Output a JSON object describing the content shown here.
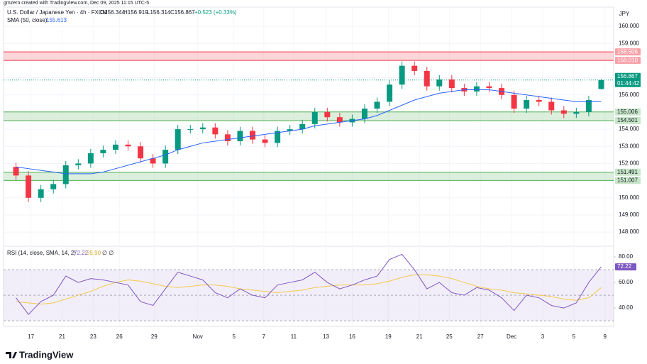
{
  "attribution": "gmzern created with TradingView.com, Dec 09, 2025 11:15 UTC-5",
  "logo": "TradingView",
  "chart_data": {
    "type": "candlestick",
    "title": "U.S. Dollar / Japanese Yen · 4h · FXCM",
    "ohlc": [
      "O156.344",
      "H156.919",
      "L156.314",
      "C156.867"
    ],
    "change": "+0.523 (+0.33%)",
    "currency": "JPY",
    "up_color": "#089981",
    "down_color": "#f23645",
    "x": [
      0,
      1,
      2,
      3,
      4,
      5,
      6,
      7,
      8,
      9,
      10,
      11,
      12,
      13,
      14,
      15,
      16,
      17,
      18,
      19,
      20,
      21,
      22,
      23,
      24,
      25,
      26,
      27,
      28,
      29,
      30,
      31,
      32,
      33,
      34,
      35,
      36,
      37,
      38,
      39,
      40,
      41,
      42,
      43,
      44,
      45,
      46,
      47
    ],
    "open": [
      151.8,
      151.3,
      150.0,
      150.5,
      150.8,
      151.9,
      152.0,
      152.6,
      152.8,
      153.1,
      153.0,
      152.3,
      152.0,
      152.8,
      154.0,
      154.0,
      154.1,
      153.7,
      153.3,
      153.9,
      153.4,
      153.2,
      153.9,
      154.0,
      154.3,
      155.0,
      154.7,
      154.4,
      154.6,
      155.2,
      155.6,
      156.6,
      157.7,
      157.4,
      156.5,
      156.9,
      156.4,
      156.2,
      156.5,
      156.4,
      156.0,
      155.2,
      155.7,
      155.6,
      155.1,
      154.9,
      155.0,
      156.344
    ],
    "high": [
      152.05,
      151.55,
      150.75,
      151.05,
      152.15,
      152.25,
      152.85,
      153.05,
      153.35,
      153.35,
      153.25,
      152.55,
      153.05,
      154.25,
      154.25,
      154.35,
      154.35,
      153.95,
      154.15,
      154.15,
      153.65,
      154.15,
      154.25,
      154.55,
      155.25,
      155.25,
      154.95,
      154.85,
      155.45,
      155.85,
      156.85,
      157.95,
      157.95,
      157.65,
      157.15,
      157.15,
      156.65,
      156.75,
      156.75,
      156.65,
      156.25,
      155.95,
      155.95,
      155.85,
      155.35,
      155.25,
      155.95,
      156.919
    ],
    "low": [
      151.05,
      149.75,
      149.75,
      150.25,
      150.55,
      151.65,
      151.75,
      152.35,
      152.55,
      152.75,
      152.05,
      151.75,
      151.75,
      152.55,
      153.75,
      153.75,
      153.45,
      153.05,
      153.05,
      153.15,
      152.95,
      152.95,
      153.65,
      153.75,
      154.05,
      154.45,
      154.15,
      154.15,
      154.35,
      154.95,
      155.35,
      156.35,
      157.15,
      156.25,
      156.25,
      156.15,
      155.95,
      155.95,
      156.15,
      155.75,
      154.95,
      154.95,
      155.35,
      154.85,
      154.65,
      154.65,
      154.75,
      156.314
    ],
    "close": [
      151.3,
      150.0,
      150.5,
      150.8,
      151.9,
      152.0,
      152.6,
      152.8,
      153.1,
      153.0,
      152.3,
      152.0,
      152.8,
      154.0,
      154.0,
      154.1,
      153.7,
      153.3,
      153.9,
      153.4,
      153.2,
      153.9,
      154.0,
      154.3,
      155.0,
      154.7,
      154.4,
      154.6,
      155.2,
      155.6,
      156.6,
      157.7,
      157.4,
      156.5,
      156.9,
      156.4,
      156.2,
      156.5,
      156.4,
      156.0,
      155.2,
      155.7,
      155.6,
      155.1,
      154.9,
      155.0,
      155.7,
      156.867
    ],
    "close_label": "156.867",
    "countdown": "01:44:42",
    "sma": {
      "name": "SMA (50, close)",
      "value_label": "155.613",
      "color": "#2962ff",
      "values": [
        151.8,
        151.7,
        151.6,
        151.5,
        151.4,
        151.4,
        151.4,
        151.5,
        151.7,
        151.9,
        152.1,
        152.3,
        152.5,
        152.8,
        153.0,
        153.2,
        153.3,
        153.4,
        153.5,
        153.6,
        153.7,
        153.8,
        153.9,
        154.0,
        154.2,
        154.3,
        154.4,
        154.5,
        154.6,
        154.8,
        155.1,
        155.4,
        155.7,
        155.9,
        156.1,
        156.2,
        156.3,
        156.3,
        156.3,
        156.2,
        156.1,
        156.0,
        155.9,
        155.8,
        155.7,
        155.6,
        155.6,
        155.613
      ]
    },
    "zones": [
      {
        "low": 158.01,
        "high": 158.506,
        "low_label": "158.010",
        "high_label": "158.506",
        "color": "#f23645"
      },
      {
        "low": 154.501,
        "high": 155.006,
        "low_label": "154.501",
        "high_label": "155.006",
        "color": "#4caf50"
      },
      {
        "low": 151.007,
        "high": 151.491,
        "low_label": "151.007",
        "high_label": "151.491",
        "color": "#4caf50"
      }
    ],
    "xlim": [
      -1,
      48
    ],
    "xticks": [
      {
        "value": 1.2,
        "label": "17"
      },
      {
        "value": 3.7,
        "label": "21"
      },
      {
        "value": 6.2,
        "label": "23"
      },
      {
        "value": 8.3,
        "label": "26"
      },
      {
        "value": 11.1,
        "label": "29"
      },
      {
        "value": 14.6,
        "label": "Nov"
      },
      {
        "value": 17.5,
        "label": "5"
      },
      {
        "value": 19.9,
        "label": "7"
      },
      {
        "value": 22.3,
        "label": "11"
      },
      {
        "value": 24.9,
        "label": "13"
      },
      {
        "value": 27.0,
        "label": "16"
      },
      {
        "value": 29.9,
        "label": "19"
      },
      {
        "value": 32.4,
        "label": "21"
      },
      {
        "value": 34.8,
        "label": "25"
      },
      {
        "value": 37.3,
        "label": "27"
      },
      {
        "value": 39.8,
        "label": "Dec"
      },
      {
        "value": 42.3,
        "label": "3"
      },
      {
        "value": 44.8,
        "label": "5"
      },
      {
        "value": 47.3,
        "label": "9"
      }
    ],
    "ylim": [
      147.26,
      161.12
    ],
    "yticks": [
      {
        "value": 148,
        "label": "148.000"
      },
      {
        "value": 149,
        "label": "149.000"
      },
      {
        "value": 150,
        "label": "150.000"
      },
      {
        "value": 152,
        "label": "152.000"
      },
      {
        "value": 153,
        "label": "153.000"
      },
      {
        "value": 154,
        "label": "154.000"
      },
      {
        "value": 156,
        "label": "156.000"
      },
      {
        "value": 157,
        "label": "157.000"
      },
      {
        "value": 159,
        "label": "159.000"
      },
      {
        "value": 160,
        "label": "160.000"
      }
    ],
    "rsi": {
      "name": "RSI (14, close, SMA, 14, 2)",
      "value_label": "72.22",
      "sma_label": "55.90",
      "extra": "∅ ∅",
      "color": "#7e57c2",
      "sma_color": "#f2c94c",
      "band": [
        30,
        70
      ],
      "mid": 50,
      "ylim": [
        25.6,
        86.7
      ],
      "yticks": [
        {
          "value": 40,
          "label": "40.00"
        },
        {
          "value": 60,
          "label": "60.00"
        },
        {
          "value": 80,
          "label": "80.00"
        }
      ],
      "values": [
        48,
        35,
        45,
        50,
        65,
        60,
        63,
        62,
        60,
        58,
        45,
        42,
        55,
        68,
        65,
        62,
        52,
        48,
        55,
        50,
        48,
        58,
        60,
        62,
        68,
        60,
        55,
        58,
        62,
        65,
        78,
        82,
        70,
        55,
        60,
        52,
        50,
        56,
        54,
        48,
        38,
        50,
        48,
        42,
        40,
        44,
        60,
        72.22
      ],
      "sma_values": [
        45,
        44,
        43,
        44,
        47,
        50,
        53,
        57,
        60,
        62,
        61,
        59,
        57,
        56,
        57,
        58,
        58,
        57,
        55,
        54,
        53,
        52,
        53,
        54,
        56,
        57,
        58,
        58,
        58,
        59,
        61,
        64,
        66,
        66,
        65,
        63,
        60,
        57,
        55,
        54,
        52,
        51,
        50,
        49,
        47,
        46,
        48,
        55.9
      ]
    }
  }
}
